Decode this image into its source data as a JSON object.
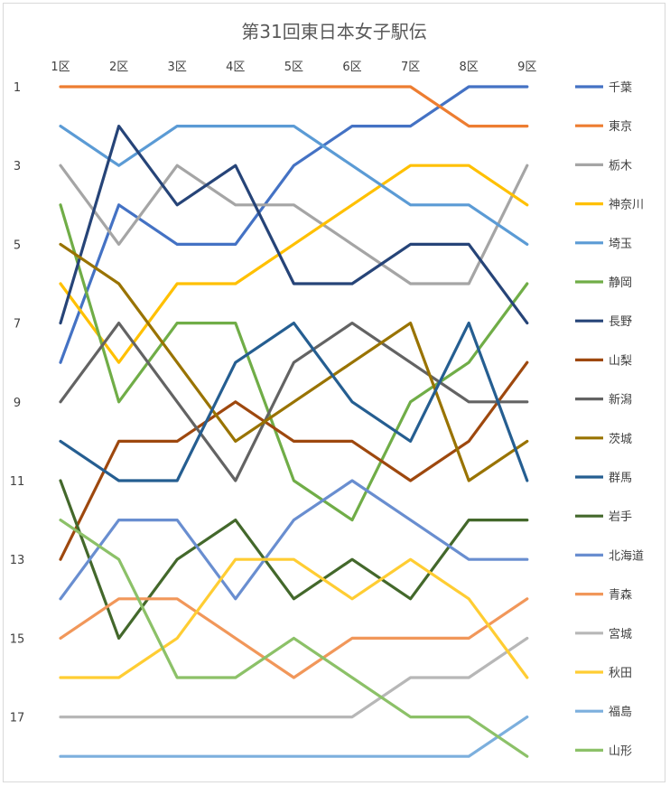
{
  "chart_data": {
    "type": "line",
    "title": "第31回東日本女子駅伝",
    "xlabel": "",
    "ylabel": "",
    "categories": [
      "1区",
      "2区",
      "3区",
      "4区",
      "5区",
      "6区",
      "7区",
      "8区",
      "9区"
    ],
    "y_ticks": [
      1,
      3,
      5,
      7,
      9,
      11,
      13,
      15,
      17
    ],
    "ylim": [
      1,
      18
    ],
    "y_inverted": true,
    "x_axis_position": "top",
    "grid": false,
    "legend_position": "right",
    "series": [
      {
        "name": "千葉",
        "color": "#4472c4",
        "values": [
          8,
          4,
          5,
          5,
          3,
          2,
          2,
          1,
          1
        ]
      },
      {
        "name": "東京",
        "color": "#ed7d31",
        "values": [
          1,
          1,
          1,
          1,
          1,
          1,
          1,
          2,
          2
        ]
      },
      {
        "name": "栃木",
        "color": "#a5a5a5",
        "values": [
          3,
          5,
          3,
          4,
          4,
          5,
          6,
          6,
          3
        ]
      },
      {
        "name": "神奈川",
        "color": "#ffc000",
        "values": [
          6,
          8,
          6,
          6,
          5,
          4,
          3,
          3,
          4
        ]
      },
      {
        "name": "埼玉",
        "color": "#5b9bd5",
        "values": [
          2,
          3,
          2,
          2,
          2,
          3,
          4,
          4,
          5
        ]
      },
      {
        "name": "静岡",
        "color": "#70ad47",
        "values": [
          4,
          9,
          7,
          7,
          11,
          12,
          9,
          8,
          6
        ]
      },
      {
        "name": "長野",
        "color": "#264478",
        "values": [
          7,
          2,
          4,
          3,
          6,
          6,
          5,
          5,
          7
        ]
      },
      {
        "name": "山梨",
        "color": "#9e480e",
        "values": [
          13,
          10,
          10,
          9,
          10,
          10,
          11,
          10,
          8
        ]
      },
      {
        "name": "新潟",
        "color": "#636363",
        "values": [
          9,
          7,
          9,
          11,
          8,
          7,
          8,
          9,
          9
        ]
      },
      {
        "name": "茨城",
        "color": "#997300",
        "values": [
          5,
          6,
          8,
          10,
          9,
          8,
          7,
          11,
          10
        ]
      },
      {
        "name": "群馬",
        "color": "#255e91",
        "values": [
          10,
          11,
          11,
          8,
          7,
          9,
          10,
          7,
          11
        ]
      },
      {
        "name": "岩手",
        "color": "#43682b",
        "values": [
          11,
          15,
          13,
          12,
          14,
          13,
          14,
          12,
          12
        ]
      },
      {
        "name": "北海道",
        "color": "#698ed0",
        "values": [
          14,
          12,
          12,
          14,
          12,
          11,
          12,
          13,
          13
        ]
      },
      {
        "name": "青森",
        "color": "#f1975a",
        "values": [
          15,
          14,
          14,
          15,
          16,
          15,
          15,
          15,
          14
        ]
      },
      {
        "name": "宮城",
        "color": "#b7b7b7",
        "values": [
          17,
          17,
          17,
          17,
          17,
          17,
          16,
          16,
          15
        ]
      },
      {
        "name": "秋田",
        "color": "#ffcd33",
        "values": [
          16,
          16,
          15,
          13,
          13,
          14,
          13,
          14,
          16
        ]
      },
      {
        "name": "福島",
        "color": "#7cafdd",
        "values": [
          18,
          18,
          18,
          18,
          18,
          18,
          18,
          18,
          17
        ]
      },
      {
        "name": "山形",
        "color": "#8cc168",
        "values": [
          12,
          13,
          16,
          16,
          15,
          16,
          17,
          17,
          18
        ]
      }
    ]
  }
}
